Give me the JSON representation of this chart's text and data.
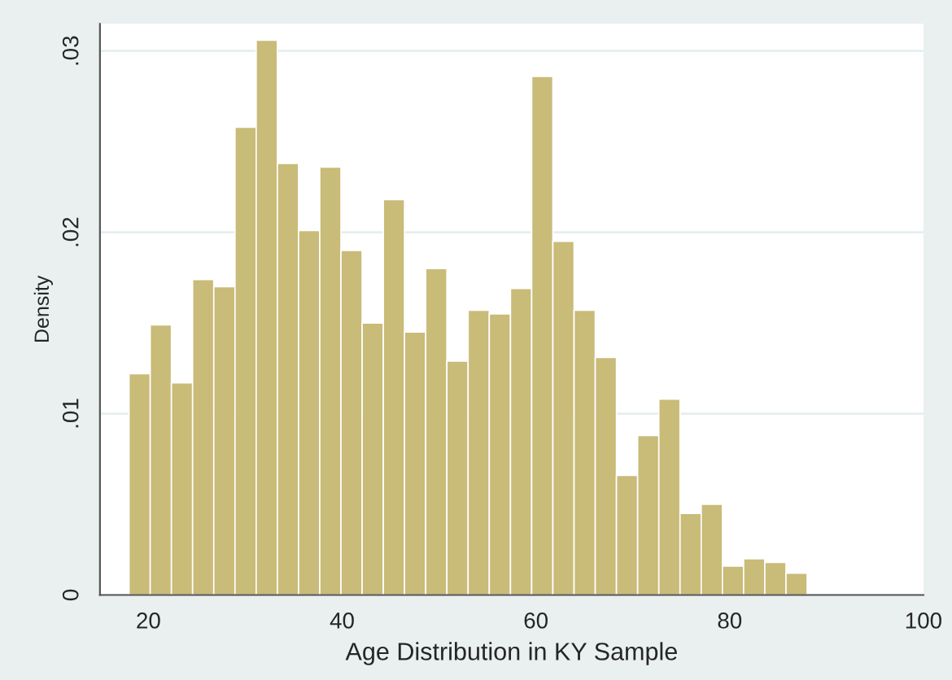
{
  "chart_data": {
    "type": "histogram",
    "xlabel": "Age Distribution in KY Sample",
    "ylabel": "Density",
    "bins": [
      18,
      20.1875,
      22.375,
      24.5625,
      26.75,
      28.9375,
      31.125,
      33.3125,
      35.5,
      37.6875,
      39.875,
      42.0625,
      44.25,
      46.4375,
      48.625,
      50.8125,
      53,
      55.1875,
      57.375,
      59.5625,
      61.75,
      63.9375,
      66.125,
      68.3125,
      70.5,
      72.6875,
      74.875,
      77.0625,
      79.25,
      81.4375,
      83.625,
      85.8125,
      88
    ],
    "values": [
      0.0122,
      0.0149,
      0.0117,
      0.0174,
      0.017,
      0.0258,
      0.0306,
      0.0238,
      0.0201,
      0.0236,
      0.019,
      0.015,
      0.0218,
      0.0145,
      0.018,
      0.0129,
      0.0157,
      0.0155,
      0.0169,
      0.0286,
      0.0195,
      0.0157,
      0.0131,
      0.0066,
      0.0088,
      0.0108,
      0.0045,
      0.005,
      0.0016,
      0.002,
      0.0018,
      0.0012
    ],
    "color": "#c9bb78",
    "xlim": [
      15,
      100
    ],
    "xticks": [
      20,
      40,
      60,
      80,
      100
    ],
    "ylim": [
      0,
      0.0315
    ],
    "yticks": [
      {
        "value": 0,
        "label": "0"
      },
      {
        "value": 0.01,
        "label": ".01"
      },
      {
        "value": 0.02,
        "label": ".02"
      },
      {
        "value": 0.03,
        "label": ".03"
      }
    ],
    "grid": "y"
  }
}
